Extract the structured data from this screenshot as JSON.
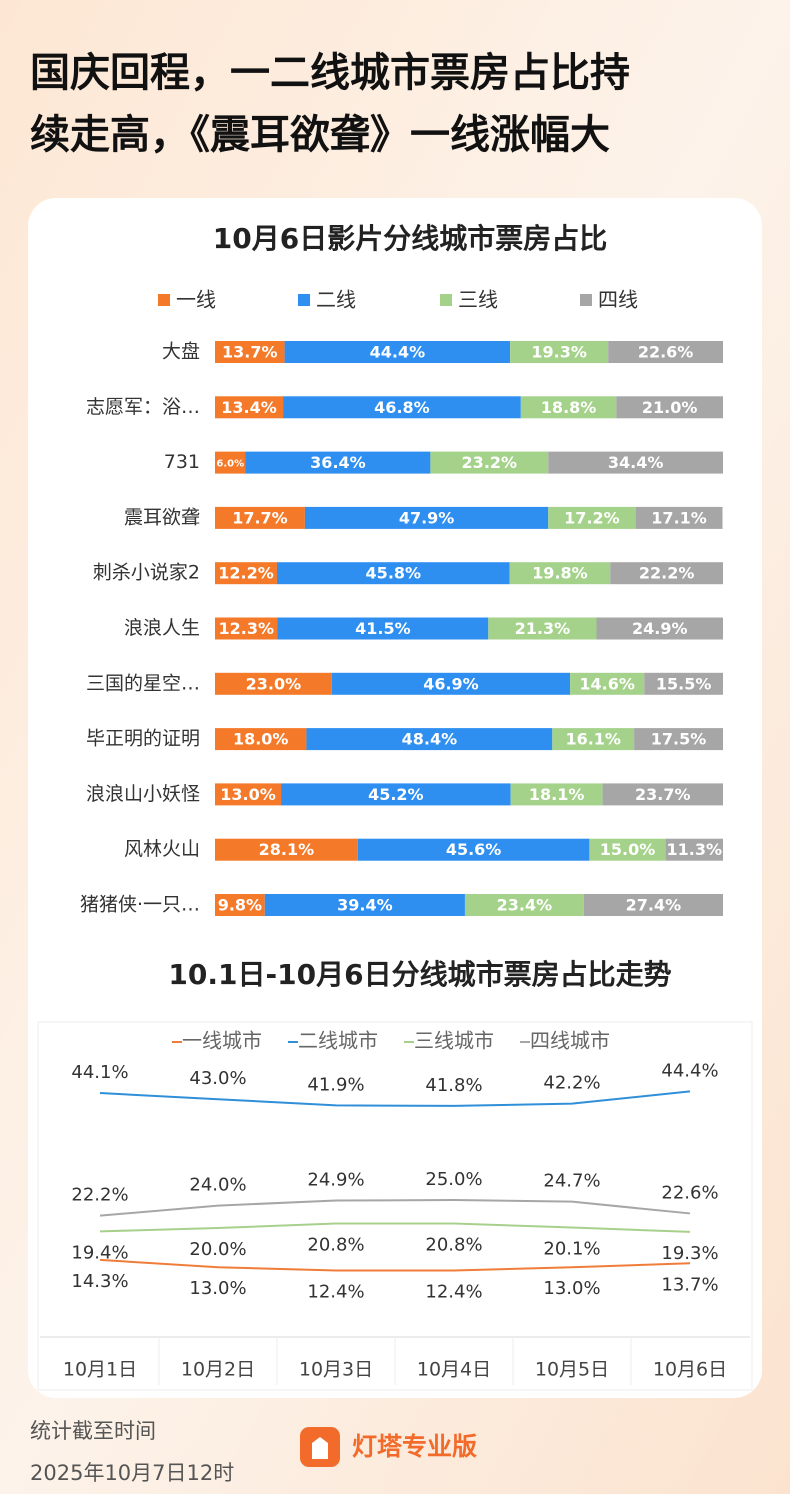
{
  "header": {
    "title_lines": [
      "国庆回程，一二线城市票房占比持",
      "续走高，《震耳欲聋》一线涨幅大"
    ]
  },
  "chart_data": [
    {
      "type": "stacked_bar",
      "title": "10月6日影片分线城市票房占比",
      "categories": [
        "大盘",
        "志愿军：浴…",
        "731",
        "震耳欲聋",
        "刺杀小说家2",
        "浪浪人生",
        "三国的星空…",
        "毕正明的证明",
        "浪浪山小妖怪",
        "风林火山",
        "猪猪侠·一只…"
      ],
      "xlim": [
        0,
        100
      ],
      "series": [
        {
          "name": "一线",
          "color": "#f47a2a",
          "values": [
            13.7,
            13.4,
            6.0,
            17.7,
            12.2,
            12.3,
            23.0,
            18.0,
            13.0,
            28.1,
            9.8
          ],
          "value_labels": [
            "13.7%",
            "13.4%",
            "6.0%",
            "17.7%",
            "12.2%",
            "12.3%",
            "23.0%",
            "18.0%",
            "13.0%",
            "28.1%",
            "9.8%"
          ]
        },
        {
          "name": "二线",
          "color": "#2e8ff0",
          "values": [
            44.4,
            46.8,
            36.4,
            47.9,
            45.8,
            41.5,
            46.9,
            48.4,
            45.2,
            45.6,
            39.4
          ],
          "value_labels": [
            "44.4%",
            "46.8%",
            "36.4%",
            "47.9%",
            "45.8%",
            "41.5%",
            "46.9%",
            "48.4%",
            "45.2%",
            "45.6%",
            "39.4%"
          ]
        },
        {
          "name": "三线",
          "color": "#a5d28a",
          "values": [
            19.3,
            18.8,
            23.2,
            17.2,
            19.8,
            21.3,
            14.6,
            16.1,
            18.1,
            15.0,
            23.4
          ],
          "value_labels": [
            "19.3%",
            "18.8%",
            "23.2%",
            "17.2%",
            "19.8%",
            "21.3%",
            "14.6%",
            "16.1%",
            "18.1%",
            "15.0%",
            "23.4%"
          ]
        },
        {
          "name": "四线",
          "color": "#a6a6a6",
          "values": [
            22.6,
            21.0,
            34.4,
            17.1,
            22.2,
            24.9,
            15.5,
            17.5,
            23.7,
            11.3,
            27.4
          ],
          "value_labels": [
            "22.6%",
            "21.0%",
            "34.4%",
            "17.1%",
            "22.2%",
            "24.9%",
            "15.5%",
            "17.5%",
            "23.7%",
            "11.3%",
            "27.4%"
          ]
        }
      ]
    },
    {
      "type": "line",
      "title": "10.1日-10月6日分线城市票房占比走势",
      "categories": [
        "10月1日",
        "10月2日",
        "10月3日",
        "10月4日",
        "10月5日",
        "10月6日"
      ],
      "ylim": [
        0,
        50
      ],
      "series": [
        {
          "name": "一线城市",
          "color": "#f07c3a",
          "values": [
            14.3,
            13.0,
            12.4,
            12.4,
            13.0,
            13.7
          ],
          "value_labels": [
            "14.3%",
            "13.0%",
            "12.4%",
            "12.4%",
            "13.0%",
            "13.7%"
          ]
        },
        {
          "name": "二线城市",
          "color": "#2f8fd8",
          "values": [
            44.1,
            43.0,
            41.9,
            41.8,
            42.2,
            44.4
          ],
          "value_labels": [
            "44.1%",
            "43.0%",
            "41.9%",
            "41.8%",
            "42.2%",
            "44.4%"
          ]
        },
        {
          "name": "三线城市",
          "color": "#a8d08d",
          "values": [
            19.4,
            20.0,
            20.8,
            20.8,
            20.1,
            19.3
          ],
          "value_labels": [
            "19.4%",
            "20.0%",
            "20.8%",
            "20.8%",
            "20.1%",
            "19.3%"
          ]
        },
        {
          "name": "四线城市",
          "color": "#a6a6a6",
          "values": [
            22.2,
            24.0,
            24.9,
            25.0,
            24.7,
            22.6
          ],
          "value_labels": [
            "22.2%",
            "24.0%",
            "24.9%",
            "25.0%",
            "24.7%",
            "22.6%"
          ]
        }
      ]
    }
  ],
  "footer": {
    "note_lines": [
      "统计截至时间",
      "2025年10月7日12时"
    ],
    "brand": "灯塔专业版"
  }
}
